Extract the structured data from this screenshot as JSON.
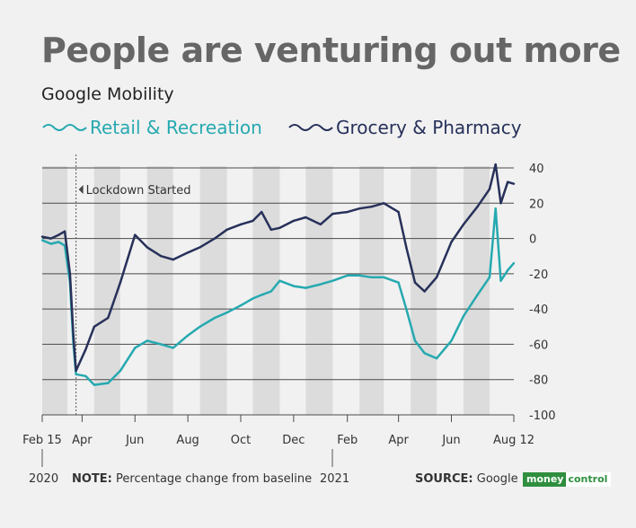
{
  "title": "People are venturing out more",
  "subtitle": "Google Mobility",
  "legend": {
    "retail": "Retail & Recreation",
    "grocery": "Grocery & Pharmacy"
  },
  "colors": {
    "retail": "#26a9b0",
    "grocery": "#27315a",
    "band": "#dcdcdc",
    "grid": "#4a4a4a",
    "title": "#666666"
  },
  "footer": {
    "year_2020": "2020",
    "note_label": "NOTE:",
    "note_text": " Percentage change from baseline",
    "year_2021": "2021",
    "source_label": "SOURCE:",
    "source_text": " Google",
    "logo_a": "money",
    "logo_b": "control"
  },
  "chart_data": {
    "type": "line",
    "annotation": "Lockdown Started",
    "annotation_date": "2020-03-25",
    "ylim": [
      -100,
      40
    ],
    "yticks": [
      40,
      20,
      0,
      -20,
      -40,
      -60,
      -80,
      -100
    ],
    "xlim": [
      "2020-02-15",
      "2021-08-12"
    ],
    "xticks": [
      {
        "date": "2020-02-15",
        "label": "Feb 15"
      },
      {
        "date": "2020-04-01",
        "label": "Apr"
      },
      {
        "date": "2020-06-01",
        "label": "Jun"
      },
      {
        "date": "2020-08-01",
        "label": "Aug"
      },
      {
        "date": "2020-10-01",
        "label": "Oct"
      },
      {
        "date": "2020-12-01",
        "label": "Dec"
      },
      {
        "date": "2021-02-01",
        "label": "Feb"
      },
      {
        "date": "2021-04-01",
        "label": "Apr"
      },
      {
        "date": "2021-06-01",
        "label": "Jun"
      },
      {
        "date": "2021-08-12",
        "label": "Aug 12"
      }
    ],
    "weekend_bands": [
      [
        "2020-02-15",
        "2020-03-15"
      ],
      [
        "2020-04-15",
        "2020-05-15"
      ],
      [
        "2020-06-15",
        "2020-07-15"
      ],
      [
        "2020-08-15",
        "2020-09-15"
      ],
      [
        "2020-10-15",
        "2020-11-15"
      ],
      [
        "2020-12-15",
        "2021-01-15"
      ],
      [
        "2021-02-15",
        "2021-03-15"
      ],
      [
        "2021-04-15",
        "2021-05-15"
      ],
      [
        "2021-06-15",
        "2021-07-15"
      ]
    ],
    "series": [
      {
        "name": "Retail & Recreation",
        "key": "retail",
        "points": [
          [
            "2020-02-15",
            -1
          ],
          [
            "2020-02-25",
            -3
          ],
          [
            "2020-03-05",
            -2
          ],
          [
            "2020-03-12",
            -4
          ],
          [
            "2020-03-18",
            -25
          ],
          [
            "2020-03-22",
            -60
          ],
          [
            "2020-03-25",
            -77
          ],
          [
            "2020-04-05",
            -78
          ],
          [
            "2020-04-15",
            -83
          ],
          [
            "2020-05-01",
            -82
          ],
          [
            "2020-05-15",
            -75
          ],
          [
            "2020-06-01",
            -62
          ],
          [
            "2020-06-15",
            -58
          ],
          [
            "2020-07-01",
            -60
          ],
          [
            "2020-07-15",
            -62
          ],
          [
            "2020-08-01",
            -55
          ],
          [
            "2020-08-15",
            -50
          ],
          [
            "2020-09-01",
            -45
          ],
          [
            "2020-09-15",
            -42
          ],
          [
            "2020-10-01",
            -38
          ],
          [
            "2020-10-15",
            -34
          ],
          [
            "2020-10-25",
            -32
          ],
          [
            "2020-11-05",
            -30
          ],
          [
            "2020-11-15",
            -24
          ],
          [
            "2020-12-01",
            -27
          ],
          [
            "2020-12-15",
            -28
          ],
          [
            "2021-01-01",
            -26
          ],
          [
            "2021-01-15",
            -24
          ],
          [
            "2021-02-01",
            -21
          ],
          [
            "2021-02-15",
            -21
          ],
          [
            "2021-03-01",
            -22
          ],
          [
            "2021-03-15",
            -22
          ],
          [
            "2021-04-01",
            -25
          ],
          [
            "2021-04-10",
            -40
          ],
          [
            "2021-04-20",
            -58
          ],
          [
            "2021-05-01",
            -65
          ],
          [
            "2021-05-15",
            -68
          ],
          [
            "2021-06-01",
            -58
          ],
          [
            "2021-06-15",
            -44
          ],
          [
            "2021-07-01",
            -32
          ],
          [
            "2021-07-15",
            -22
          ],
          [
            "2021-07-22",
            17
          ],
          [
            "2021-07-28",
            -24
          ],
          [
            "2021-08-05",
            -18
          ],
          [
            "2021-08-12",
            -14
          ]
        ]
      },
      {
        "name": "Grocery & Pharmacy",
        "key": "grocery",
        "points": [
          [
            "2020-02-15",
            1
          ],
          [
            "2020-02-25",
            0
          ],
          [
            "2020-03-05",
            2
          ],
          [
            "2020-03-12",
            4
          ],
          [
            "2020-03-18",
            -20
          ],
          [
            "2020-03-22",
            -55
          ],
          [
            "2020-03-25",
            -75
          ],
          [
            "2020-04-05",
            -63
          ],
          [
            "2020-04-15",
            -50
          ],
          [
            "2020-05-01",
            -45
          ],
          [
            "2020-05-15",
            -25
          ],
          [
            "2020-06-01",
            2
          ],
          [
            "2020-06-15",
            -5
          ],
          [
            "2020-07-01",
            -10
          ],
          [
            "2020-07-15",
            -12
          ],
          [
            "2020-08-01",
            -8
          ],
          [
            "2020-08-15",
            -5
          ],
          [
            "2020-09-01",
            0
          ],
          [
            "2020-09-15",
            5
          ],
          [
            "2020-10-01",
            8
          ],
          [
            "2020-10-15",
            10
          ],
          [
            "2020-10-25",
            15
          ],
          [
            "2020-11-05",
            5
          ],
          [
            "2020-11-15",
            6
          ],
          [
            "2020-12-01",
            10
          ],
          [
            "2020-12-15",
            12
          ],
          [
            "2021-01-01",
            8
          ],
          [
            "2021-01-15",
            14
          ],
          [
            "2021-02-01",
            15
          ],
          [
            "2021-02-15",
            17
          ],
          [
            "2021-03-01",
            18
          ],
          [
            "2021-03-15",
            20
          ],
          [
            "2021-04-01",
            15
          ],
          [
            "2021-04-10",
            -5
          ],
          [
            "2021-04-20",
            -25
          ],
          [
            "2021-05-01",
            -30
          ],
          [
            "2021-05-15",
            -22
          ],
          [
            "2021-06-01",
            -2
          ],
          [
            "2021-06-15",
            8
          ],
          [
            "2021-07-01",
            18
          ],
          [
            "2021-07-15",
            28
          ],
          [
            "2021-07-22",
            42
          ],
          [
            "2021-07-28",
            20
          ],
          [
            "2021-08-05",
            32
          ],
          [
            "2021-08-12",
            31
          ]
        ]
      }
    ]
  }
}
